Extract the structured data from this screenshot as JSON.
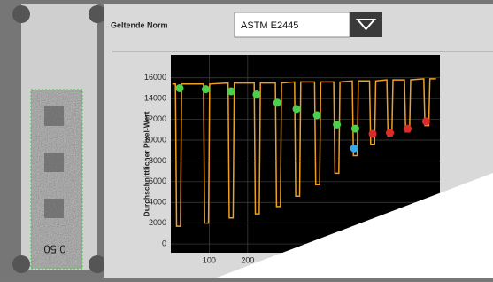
{
  "ui": {
    "norm_label": "Geltende Norm",
    "norm_value": "ASTM E2445",
    "image_label": "0.50"
  },
  "chart_data": {
    "type": "line",
    "y_label": "Durchschnittlicher Pixel-Wert",
    "xlim": [
      0,
      700
    ],
    "ylim": [
      -850,
      18200
    ],
    "xticks": [
      100,
      200
    ],
    "yticks": [
      0,
      2000,
      4000,
      6000,
      8000,
      10000,
      12000,
      14000,
      16000
    ],
    "grid": true,
    "series": [
      {
        "color": "#f0a020",
        "x": [
          4,
          12,
          15,
          25,
          28,
          85,
          88,
          98,
          101,
          149,
          152,
          162,
          165,
          217,
          220,
          230,
          233,
          272,
          275,
          285,
          288,
          322,
          325,
          335,
          338,
          374,
          377,
          387,
          390,
          424,
          427,
          437,
          440,
          472,
          475,
          485,
          488,
          517,
          520,
          530,
          533,
          562,
          565,
          575,
          578,
          608,
          611,
          621,
          624,
          658,
          661,
          671,
          674,
          690
        ],
        "values": [
          15400,
          15400,
          1700,
          1700,
          15400,
          15400,
          2000,
          2000,
          15400,
          15500,
          2500,
          2500,
          15500,
          15500,
          2900,
          2900,
          15500,
          15500,
          3600,
          3600,
          15500,
          15600,
          4600,
          4600,
          15600,
          15600,
          5700,
          5700,
          15600,
          15600,
          6800,
          6800,
          15600,
          15700,
          8500,
          8500,
          15700,
          15700,
          9600,
          9600,
          15700,
          15800,
          10400,
          10400,
          15800,
          15800,
          10800,
          10800,
          15800,
          15900,
          11400,
          11400,
          15900,
          15900
        ]
      }
    ],
    "points": [
      {
        "color": "#4cd04c",
        "x": [
          23,
          91,
          157,
          223,
          277,
          327,
          380,
          432,
          480
        ],
        "values": [
          15000,
          14900,
          14700,
          14400,
          13600,
          13000,
          12400,
          11500,
          11100
        ]
      },
      {
        "color": "#38a8e8",
        "x": [
          477
        ],
        "values": [
          9200
        ]
      },
      {
        "color": "#e02a2a",
        "x": [
          525,
          570,
          616,
          664
        ],
        "values": [
          10600,
          10700,
          11100,
          11800
        ]
      }
    ]
  }
}
